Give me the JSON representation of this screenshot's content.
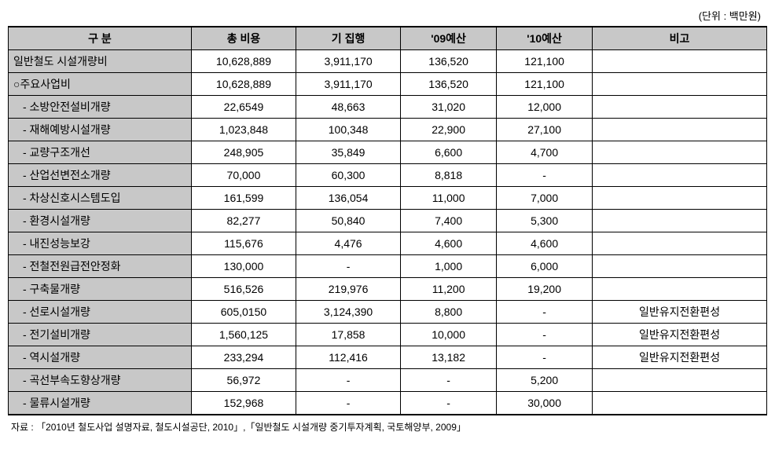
{
  "unit_label": "(단위 : 백만원)",
  "headers": {
    "col1": "구   분",
    "col2": "총 비용",
    "col3": "기 집행",
    "col4": "'09예산",
    "col5": "'10예산",
    "col6": "비고"
  },
  "rows": [
    {
      "label": "일반철도 시설개량비",
      "indent": 0,
      "c1": "10,628,889",
      "c2": "3,911,170",
      "c3": "136,520",
      "c4": "121,100",
      "c5": ""
    },
    {
      "label": "○주요사업비",
      "indent": 0,
      "c1": "10,628,889",
      "c2": "3,911,170",
      "c3": "136,520",
      "c4": "121,100",
      "c5": ""
    },
    {
      "label": "- 소방안전설비개량",
      "indent": 2,
      "c1": "22,6549",
      "c2": "48,663",
      "c3": "31,020",
      "c4": "12,000",
      "c5": ""
    },
    {
      "label": "- 재해예방시설개량",
      "indent": 2,
      "c1": "1,023,848",
      "c2": "100,348",
      "c3": "22,900",
      "c4": "27,100",
      "c5": ""
    },
    {
      "label": "- 교량구조개선",
      "indent": 2,
      "c1": "248,905",
      "c2": "35,849",
      "c3": "6,600",
      "c4": "4,700",
      "c5": ""
    },
    {
      "label": "- 산업선변전소개량",
      "indent": 2,
      "c1": "70,000",
      "c2": "60,300",
      "c3": "8,818",
      "c4": "-",
      "c5": ""
    },
    {
      "label": "- 차상신호시스템도입",
      "indent": 2,
      "c1": "161,599",
      "c2": "136,054",
      "c3": "11,000",
      "c4": "7,000",
      "c5": ""
    },
    {
      "label": "- 환경시설개량",
      "indent": 2,
      "c1": "82,277",
      "c2": "50,840",
      "c3": "7,400",
      "c4": "5,300",
      "c5": ""
    },
    {
      "label": "- 내진성능보강",
      "indent": 2,
      "c1": "115,676",
      "c2": "4,476",
      "c3": "4,600",
      "c4": "4,600",
      "c5": ""
    },
    {
      "label": "- 전철전원급전안정화",
      "indent": 2,
      "c1": "130,000",
      "c2": "-",
      "c3": "1,000",
      "c4": "6,000",
      "c5": ""
    },
    {
      "label": "- 구축물개량",
      "indent": 2,
      "c1": "516,526",
      "c2": "219,976",
      "c3": "11,200",
      "c4": "19,200",
      "c5": ""
    },
    {
      "label": "- 선로시설개량",
      "indent": 2,
      "c1": "605,0150",
      "c2": "3,124,390",
      "c3": "8,800",
      "c4": "-",
      "c5": "일반유지전환편성"
    },
    {
      "label": "- 전기설비개량",
      "indent": 2,
      "c1": "1,560,125",
      "c2": "17,858",
      "c3": "10,000",
      "c4": "-",
      "c5": "일반유지전환편성"
    },
    {
      "label": "- 역시설개량",
      "indent": 2,
      "c1": "233,294",
      "c2": "112,416",
      "c3": "13,182",
      "c4": "-",
      "c5": "일반유지전환편성"
    },
    {
      "label": "- 곡선부속도향상개량",
      "indent": 2,
      "c1": "56,972",
      "c2": "-",
      "c3": "-",
      "c4": "5,200",
      "c5": ""
    },
    {
      "label": "- 물류시설개량",
      "indent": 2,
      "c1": "152,968",
      "c2": "-",
      "c3": "-",
      "c4": "30,000",
      "c5": ""
    }
  ],
  "source": "자료 : 「2010년 철도사업 설명자료, 철도시설공단, 2010」,「일반철도 시설개량 중기투자계획, 국토해양부, 2009」",
  "col_widths": {
    "col1": "210px",
    "col2": "120px",
    "col3": "120px",
    "col4": "110px",
    "col5": "110px",
    "col6": "200px"
  }
}
